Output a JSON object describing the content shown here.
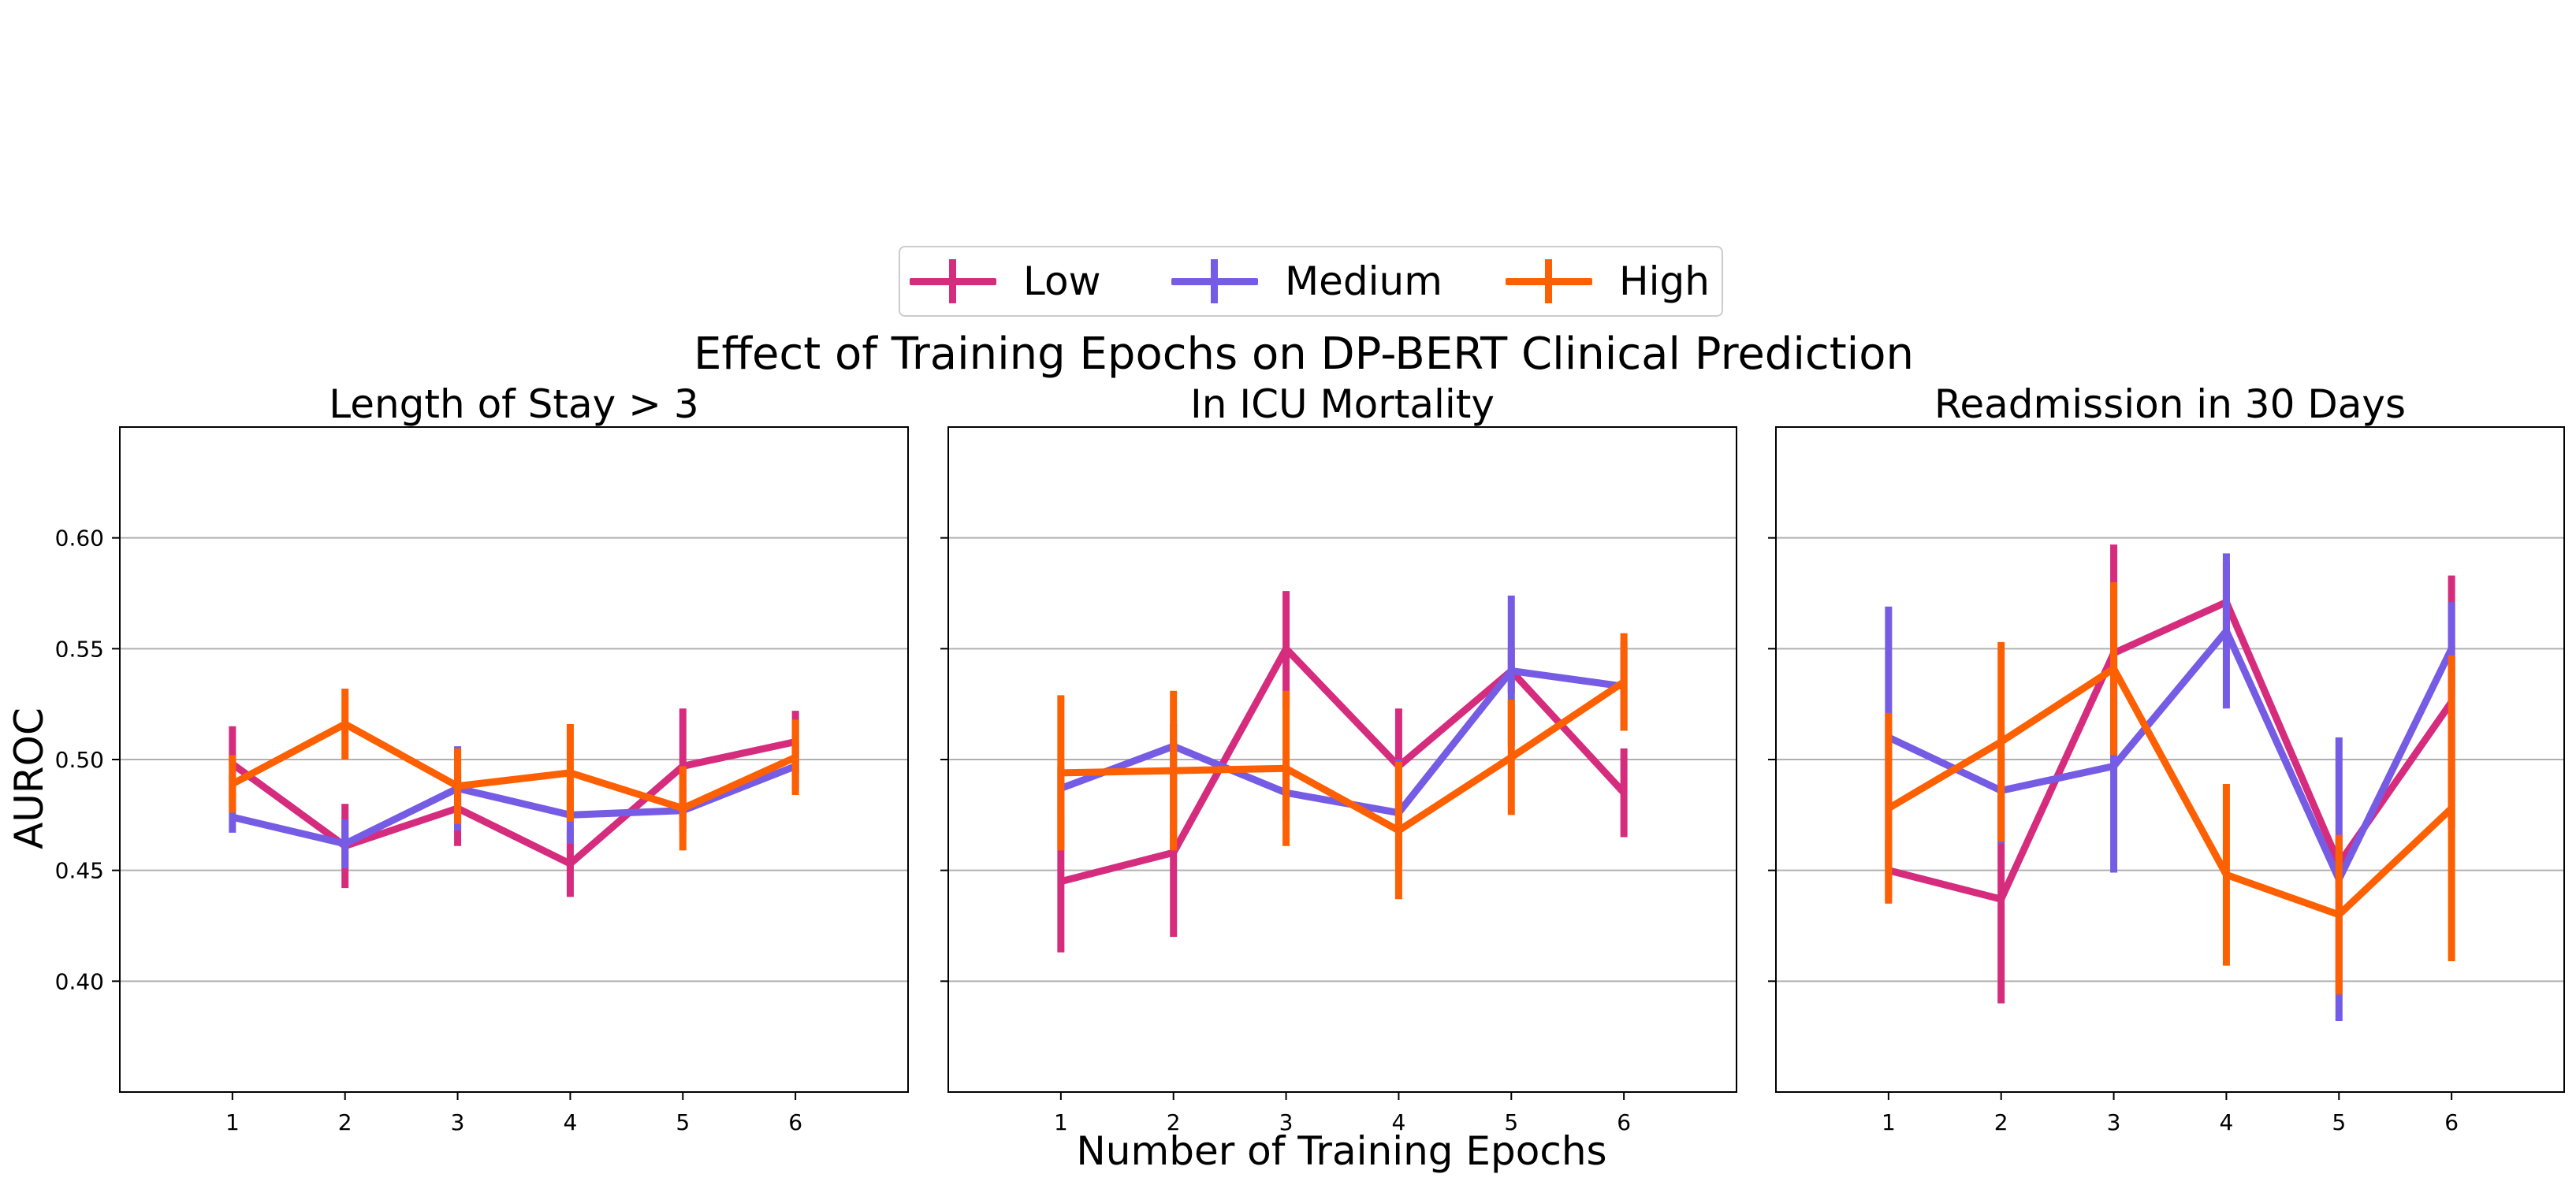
{
  "figure": {
    "suptitle": "Effect of Training Epochs on DP-BERT Clinical Prediction",
    "xlabel": "Number of Training Epochs",
    "ylabel": "AUROC"
  },
  "legend": {
    "placement": "top-center",
    "items": [
      {
        "label": "Low",
        "color": "#d62c7e"
      },
      {
        "label": "Medium",
        "color": "#765ce5"
      },
      {
        "label": "High",
        "color": "#fd6002"
      }
    ]
  },
  "chart_data": [
    {
      "type": "line",
      "title": "Length of Stay > 3",
      "x": [
        1,
        2,
        3,
        4,
        5,
        6
      ],
      "xlim": [
        0,
        7
      ],
      "ylim": [
        0.35,
        0.65
      ],
      "yticks": [
        0.4,
        0.45,
        0.5,
        0.55,
        0.6
      ],
      "ytick_labels": [
        "0.40",
        "0.45",
        "0.50",
        "0.55",
        "0.60"
      ],
      "grid": "horizontal",
      "series": [
        {
          "name": "Low",
          "color": "#d62c7e",
          "values": [
            0.498,
            0.461,
            0.478,
            0.453,
            0.497,
            0.508
          ],
          "err": [
            0.017,
            0.019,
            0.017,
            0.015,
            0.026,
            0.014
          ]
        },
        {
          "name": "Medium",
          "color": "#765ce5",
          "values": [
            0.474,
            0.462,
            0.487,
            0.475,
            0.477,
            0.497
          ],
          "err": [
            0.007,
            0.011,
            0.019,
            0.013,
            0.01,
            0.011
          ]
        },
        {
          "name": "High",
          "color": "#fd6002",
          "values": [
            0.489,
            0.516,
            0.488,
            0.494,
            0.478,
            0.501
          ],
          "err": [
            0.013,
            0.016,
            0.017,
            0.022,
            0.019,
            0.017
          ]
        }
      ]
    },
    {
      "type": "line",
      "title": "In ICU Mortality",
      "x": [
        1,
        2,
        3,
        4,
        5,
        6
      ],
      "xlim": [
        0,
        7
      ],
      "ylim": [
        0.35,
        0.65
      ],
      "grid": "horizontal",
      "series": [
        {
          "name": "Low",
          "color": "#d62c7e",
          "values": [
            0.445,
            0.458,
            0.55,
            0.497,
            0.54,
            0.485
          ],
          "err": [
            0.032,
            0.038,
            0.026,
            0.026,
            0.01,
            0.02
          ]
        },
        {
          "name": "Medium",
          "color": "#765ce5",
          "values": [
            0.487,
            0.506,
            0.485,
            0.476,
            0.54,
            0.533
          ],
          "err": [
            0.01,
            0.01,
            0.012,
            0.024,
            0.034,
            0.02
          ]
        },
        {
          "name": "High",
          "color": "#fd6002",
          "values": [
            0.494,
            0.495,
            0.496,
            0.468,
            0.501,
            0.535
          ],
          "err": [
            0.035,
            0.036,
            0.035,
            0.031,
            0.026,
            0.022
          ]
        }
      ]
    },
    {
      "type": "line",
      "title": "Readmission in 30 Days",
      "x": [
        1,
        2,
        3,
        4,
        5,
        6
      ],
      "xlim": [
        0,
        7
      ],
      "ylim": [
        0.35,
        0.65
      ],
      "grid": "horizontal",
      "series": [
        {
          "name": "Low",
          "color": "#d62c7e",
          "values": [
            0.45,
            0.437,
            0.548,
            0.571,
            0.453,
            0.526
          ],
          "err": [
            0.014,
            0.047,
            0.049,
            0.018,
            0.011,
            0.057
          ]
        },
        {
          "name": "Medium",
          "color": "#765ce5",
          "values": [
            0.51,
            0.486,
            0.497,
            0.558,
            0.446,
            0.55
          ],
          "err": [
            0.059,
            0.024,
            0.048,
            0.035,
            0.064,
            0.021
          ]
        },
        {
          "name": "High",
          "color": "#fd6002",
          "values": [
            0.478,
            0.508,
            0.541,
            0.448,
            0.43,
            0.478
          ],
          "err": [
            0.043,
            0.045,
            0.039,
            0.041,
            0.036,
            0.069
          ]
        }
      ]
    }
  ]
}
